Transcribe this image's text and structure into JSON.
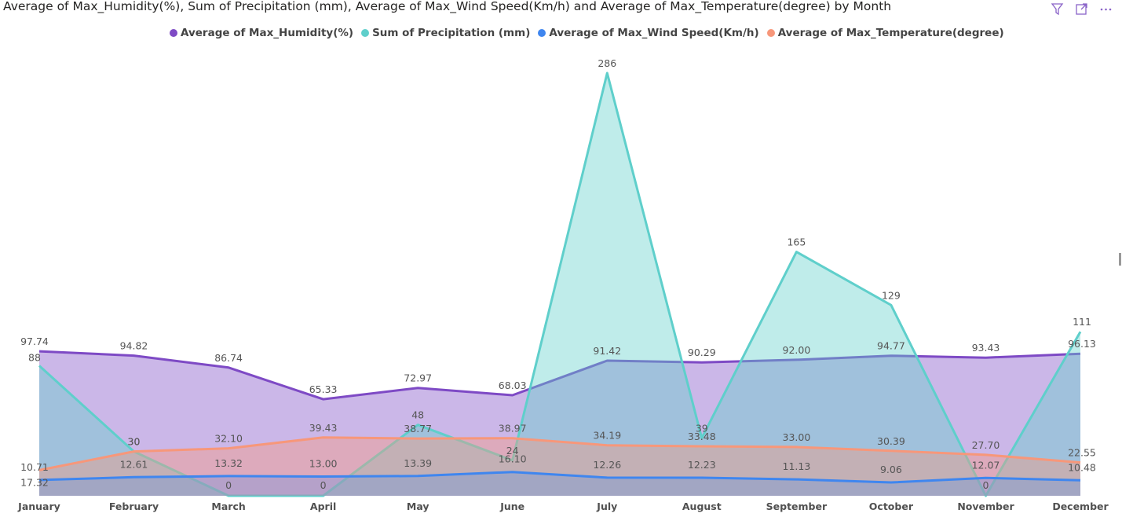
{
  "title": "Average of Max_Humidity(%), Sum of Precipitation (mm), Average of Max_Wind Speed(Km/h) and Average of Max_Temperature(degree) by Month",
  "toolbar": {
    "icons": [
      "filter-icon",
      "focus-mode-icon",
      "more-options-icon"
    ]
  },
  "colors": {
    "humidity": "#7e4ac5",
    "precipitation": "#5fcfcb",
    "wind": "#3f86ef",
    "temperature": "#f7977a"
  },
  "chart_data": {
    "type": "area",
    "categories": [
      "January",
      "February",
      "March",
      "April",
      "May",
      "June",
      "July",
      "August",
      "September",
      "October",
      "November",
      "December"
    ],
    "legend_position": "top",
    "series": [
      {
        "name": "Average of Max_Humidity(%)",
        "key": "humidity",
        "values": [
          97.74,
          94.82,
          86.74,
          65.33,
          72.97,
          68.03,
          91.42,
          90.29,
          92.0,
          94.77,
          93.43,
          96.13
        ],
        "labels": [
          "97.74",
          "94.82",
          "86.74",
          "65.33",
          "72.97",
          "68.03",
          "91.42",
          "90.29",
          "92.00",
          "94.77",
          "93.43",
          "96.13"
        ]
      },
      {
        "name": "Sum of Precipitation (mm)",
        "key": "precipitation",
        "values": [
          88,
          30,
          0,
          0,
          48,
          24,
          286,
          39,
          165,
          129,
          0,
          111
        ],
        "labels": [
          "88",
          "30",
          "0",
          "0",
          "48",
          "24",
          "286",
          "39",
          "165",
          "129",
          "0",
          "111"
        ]
      },
      {
        "name": "Average of Max_Wind Speed(Km/h)",
        "key": "wind",
        "values": [
          10.71,
          12.61,
          13.32,
          13.0,
          13.39,
          16.1,
          12.26,
          12.23,
          11.13,
          9.06,
          12.07,
          10.48
        ],
        "labels": [
          "10.71",
          "12.61",
          "13.32",
          "13.00",
          "13.39",
          "16.10",
          "12.26",
          "12.23",
          "11.13",
          "9.06",
          "12.07",
          "10.48"
        ]
      },
      {
        "name": "Average of Max_Temperature(degree)",
        "key": "temperature",
        "values": [
          17.32,
          30,
          32.1,
          39.43,
          38.77,
          38.97,
          34.19,
          33.48,
          33.0,
          30.39,
          27.7,
          22.55
        ],
        "labels": [
          "17.32",
          "30",
          "32.10",
          "39.43",
          "38.77",
          "38.97",
          "34.19",
          "33.48",
          "33.00",
          "30.39",
          "27.70",
          "22.55"
        ]
      }
    ],
    "ylim": [
      0,
      286
    ],
    "grid": false
  }
}
